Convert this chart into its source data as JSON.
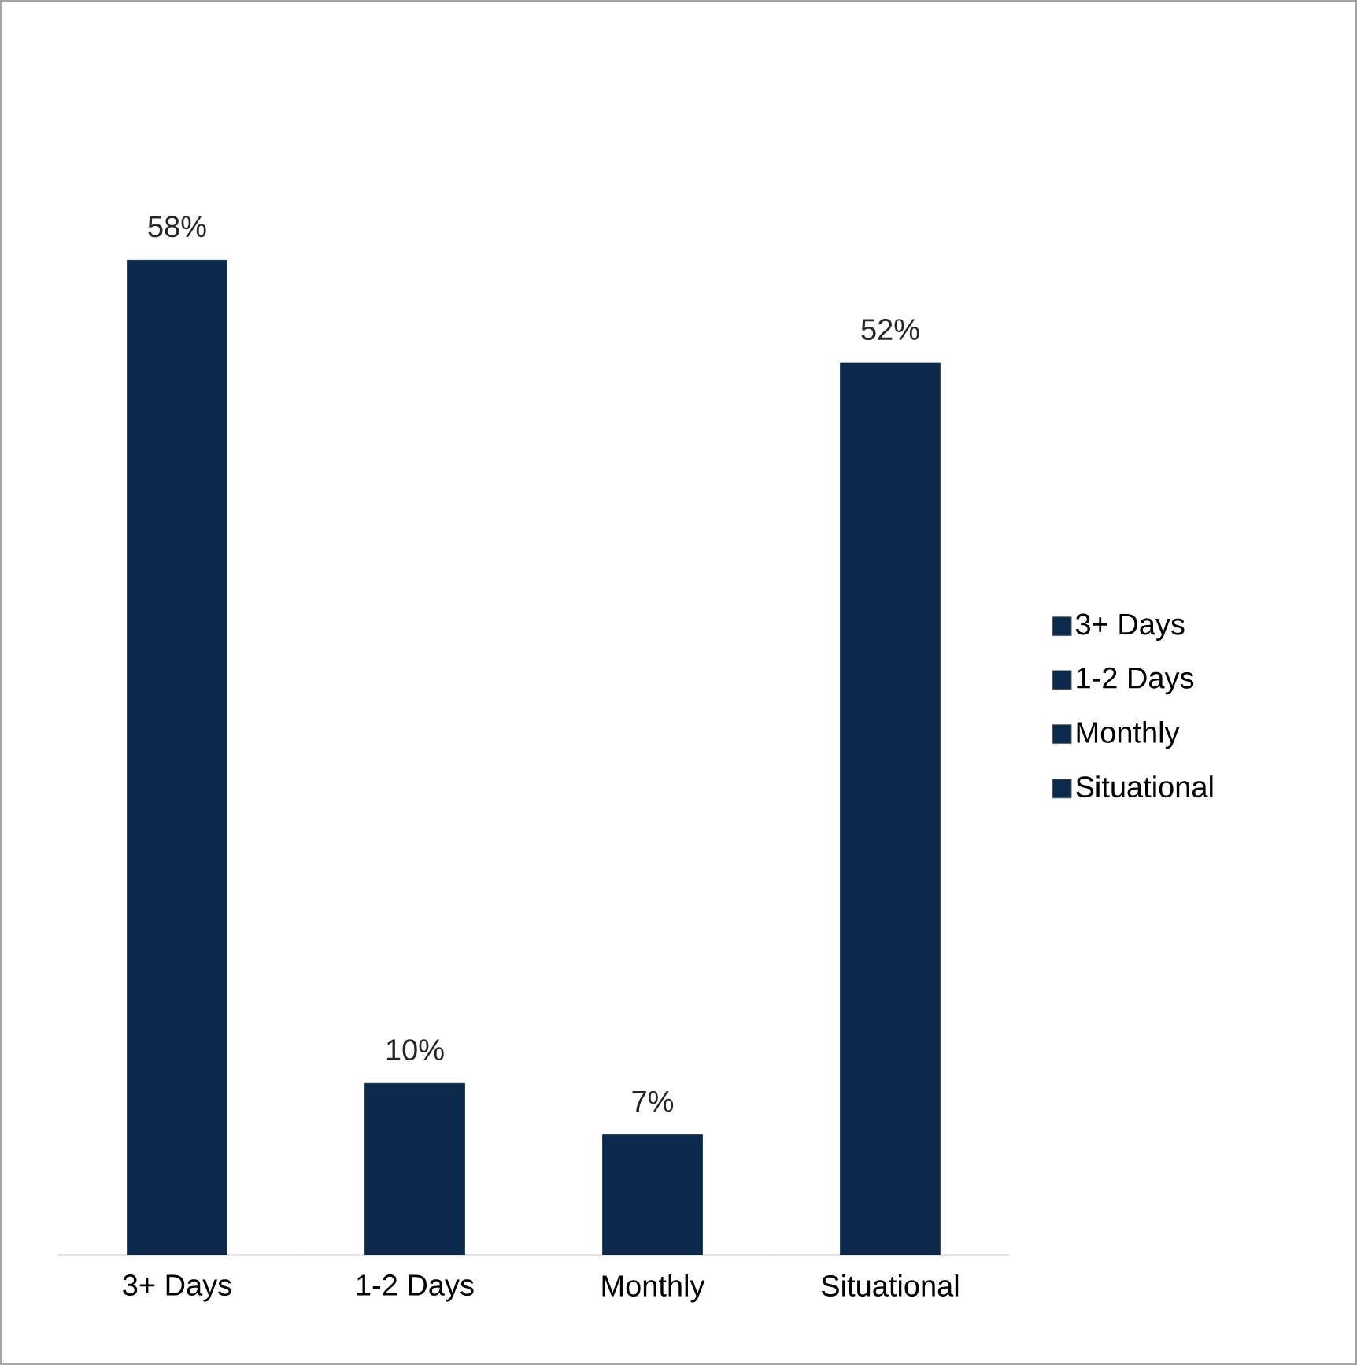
{
  "chart_data": {
    "type": "bar",
    "categories": [
      "3+ Days",
      "1-2 Days",
      "Monthly",
      "Situational"
    ],
    "series": [
      {
        "name": "3+ Days",
        "color": "#0c2b4c",
        "values": [
          58,
          null,
          null,
          null
        ],
        "value_labels": [
          "58%",
          null,
          null,
          null
        ]
      },
      {
        "name": "1-2 Days",
        "color": "#0c2b4c",
        "values": [
          null,
          10,
          null,
          null
        ],
        "value_labels": [
          null,
          "10%",
          null,
          null
        ]
      },
      {
        "name": "Monthly",
        "color": "#0c2b4c",
        "values": [
          null,
          null,
          7,
          null
        ],
        "value_labels": [
          null,
          null,
          "7%",
          null
        ]
      },
      {
        "name": "Situational",
        "color": "#0c2b4c",
        "values": [
          null,
          null,
          null,
          52
        ],
        "value_labels": [
          null,
          null,
          null,
          "52%"
        ]
      }
    ],
    "legend": "right"
  }
}
